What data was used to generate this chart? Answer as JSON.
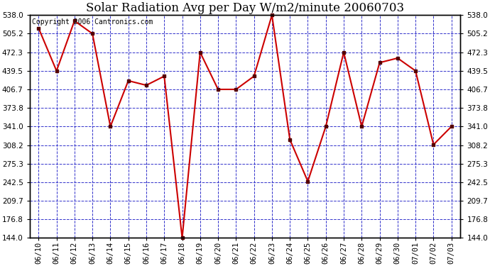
{
  "title": "Solar Radiation Avg per Day W/m2/minute 20060703",
  "copyright_text": "Copyright 2006 Cantronics.com",
  "dates": [
    "06/10",
    "06/11",
    "06/12",
    "06/13",
    "06/14",
    "06/15",
    "06/16",
    "06/17",
    "06/18",
    "06/19",
    "06/20",
    "06/21",
    "06/22",
    "06/23",
    "06/24",
    "06/25",
    "06/26",
    "06/27",
    "06/28",
    "06/29",
    "06/30",
    "07/01",
    "07/02",
    "07/03"
  ],
  "values": [
    515.0,
    439.5,
    528.0,
    505.2,
    341.0,
    422.0,
    414.0,
    430.0,
    144.0,
    472.3,
    406.7,
    406.7,
    430.0,
    538.0,
    318.0,
    244.0,
    341.0,
    472.3,
    341.0,
    454.0,
    462.0,
    439.5,
    309.0,
    341.0
  ],
  "ymin": 144.0,
  "ymax": 538.0,
  "yticks": [
    144.0,
    176.8,
    209.7,
    242.5,
    275.3,
    308.2,
    341.0,
    373.8,
    406.7,
    439.5,
    472.3,
    505.2,
    538.0
  ],
  "line_color": "#cc0000",
  "marker_color": "#550000",
  "bg_color": "#ffffff",
  "plot_bg_color": "#ffffff",
  "grid_color": "#3333cc",
  "title_color": "#000000",
  "copyright_color": "#000000",
  "title_fontsize": 12,
  "tick_fontsize": 7.5,
  "copyright_fontsize": 7
}
